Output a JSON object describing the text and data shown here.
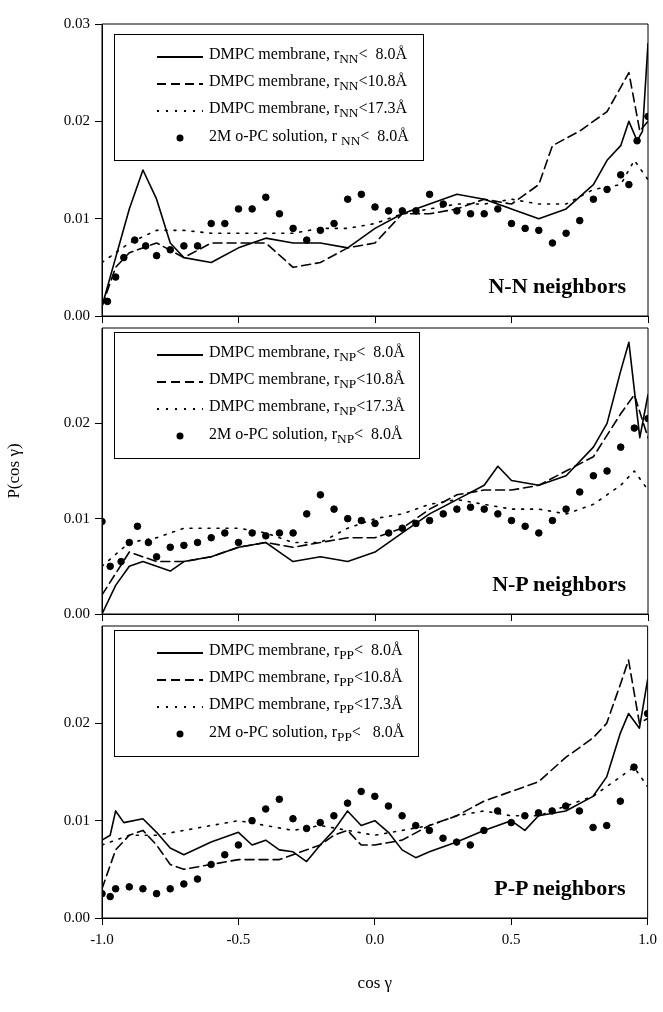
{
  "chart_data": [
    {
      "type": "line",
      "annotations": [
        "N-N neighbors"
      ],
      "legend": "top left",
      "tick_labels": "y",
      "xlim": [
        -1,
        1
      ],
      "ylim": [
        0,
        0.03
      ],
      "xticks": [
        {
          "value": -1,
          "label": null
        },
        {
          "value": -0.5,
          "label": null
        },
        {
          "value": 0,
          "label": null
        },
        {
          "value": 0.5,
          "label": null
        },
        {
          "value": 1,
          "label": null
        }
      ],
      "yticks": [
        {
          "value": 0,
          "label": "0.00"
        },
        {
          "value": 0.01,
          "label": "0.01"
        },
        {
          "value": 0.02,
          "label": "0.02"
        },
        {
          "value": 0.03,
          "label": "0.03"
        }
      ],
      "series": [
        {
          "name": "DMPC membrane, r$_{NN}$<  8.0Å",
          "color": "#000000",
          "type": "line",
          "line_style": "solid",
          "marker": "none",
          "x": [
            -1,
            -0.95,
            -0.9,
            -0.85,
            -0.8,
            -0.75,
            -0.7,
            -0.6,
            -0.5,
            -0.4,
            -0.3,
            -0.2,
            -0.1,
            0,
            0.1,
            0.2,
            0.3,
            0.4,
            0.5,
            0.6,
            0.7,
            0.8,
            0.85,
            0.9,
            0.93,
            0.96,
            0.98,
            1
          ],
          "values": [
            0.001,
            0.006,
            0.011,
            0.015,
            0.012,
            0.0075,
            0.006,
            0.0055,
            0.007,
            0.008,
            0.0075,
            0.0075,
            0.007,
            0.009,
            0.0105,
            0.0115,
            0.0125,
            0.012,
            0.011,
            0.01,
            0.011,
            0.0135,
            0.016,
            0.0175,
            0.02,
            0.018,
            0.019,
            0.028
          ]
        },
        {
          "name": "DMPC membrane, r$_{NN}$<10.8Å",
          "color": "#000000",
          "type": "line",
          "line_style": "dashed",
          "marker": "none",
          "x": [
            -1,
            -0.95,
            -0.9,
            -0.8,
            -0.7,
            -0.6,
            -0.5,
            -0.4,
            -0.3,
            -0.2,
            -0.1,
            0,
            0.1,
            0.2,
            0.3,
            0.4,
            0.5,
            0.6,
            0.65,
            0.75,
            0.85,
            0.9,
            0.93,
            0.97,
            1
          ],
          "values": [
            0.001,
            0.005,
            0.0065,
            0.0075,
            0.006,
            0.0075,
            0.0075,
            0.0075,
            0.005,
            0.0055,
            0.007,
            0.0075,
            0.0105,
            0.0105,
            0.011,
            0.012,
            0.0115,
            0.0135,
            0.0175,
            0.019,
            0.021,
            0.0235,
            0.025,
            0.019,
            0.02
          ]
        },
        {
          "name": "DMPC membrane, r$_{NN}$<17.3Å",
          "color": "#000000",
          "type": "line",
          "line_style": "dotted",
          "marker": "none",
          "x": [
            -1,
            -0.9,
            -0.8,
            -0.7,
            -0.6,
            -0.5,
            -0.4,
            -0.3,
            -0.2,
            -0.1,
            0,
            0.1,
            0.2,
            0.3,
            0.4,
            0.5,
            0.6,
            0.7,
            0.8,
            0.9,
            0.95,
            1
          ],
          "values": [
            0.0055,
            0.0075,
            0.0088,
            0.0088,
            0.0085,
            0.0085,
            0.0085,
            0.0085,
            0.009,
            0.009,
            0.0095,
            0.0105,
            0.011,
            0.0115,
            0.0115,
            0.012,
            0.0115,
            0.0115,
            0.013,
            0.0135,
            0.016,
            0.014
          ]
        },
        {
          "name": "2M o-PC solution, r $_{NN}$<  8.0Å",
          "color": "#000000",
          "type": "scatter",
          "marker": "circle",
          "x": [
            -0.98,
            -0.95,
            -0.92,
            -0.88,
            -0.84,
            -0.8,
            -0.75,
            -0.7,
            -0.65,
            -0.6,
            -0.55,
            -0.5,
            -0.45,
            -0.4,
            -0.35,
            -0.3,
            -0.25,
            -0.2,
            -0.15,
            -0.1,
            -0.05,
            0,
            0.05,
            0.1,
            0.15,
            0.2,
            0.25,
            0.3,
            0.35,
            0.4,
            0.45,
            0.5,
            0.55,
            0.6,
            0.65,
            0.7,
            0.75,
            0.8,
            0.85,
            0.9,
            0.93,
            0.96,
            1
          ],
          "values": [
            0.0015,
            0.004,
            0.006,
            0.0078,
            0.0072,
            0.0062,
            0.0068,
            0.0072,
            0.0072,
            0.0095,
            0.0095,
            0.011,
            0.011,
            0.0122,
            0.0105,
            0.009,
            0.0078,
            0.0088,
            0.0095,
            0.012,
            0.0125,
            0.0112,
            0.0108,
            0.0108,
            0.0108,
            0.0125,
            0.0115,
            0.0108,
            0.0105,
            0.0105,
            0.011,
            0.0095,
            0.009,
            0.0088,
            0.0075,
            0.0085,
            0.0098,
            0.012,
            0.013,
            0.0145,
            0.0135,
            0.018,
            0.0205
          ]
        }
      ]
    },
    {
      "type": "line",
      "annotations": [
        "N-P neighbors"
      ],
      "ylabel": "P(cos γ)",
      "legend": "top left",
      "tick_labels": "y",
      "xlim": [
        -1,
        1
      ],
      "ylim": [
        0,
        0.03
      ],
      "xticks": [
        {
          "value": -1,
          "label": null
        },
        {
          "value": -0.5,
          "label": null
        },
        {
          "value": 0,
          "label": null
        },
        {
          "value": 0.5,
          "label": null
        },
        {
          "value": 1,
          "label": null
        }
      ],
      "yticks": [
        {
          "value": 0,
          "label": "0.00"
        },
        {
          "value": 0.01,
          "label": "0.01"
        },
        {
          "value": 0.02,
          "label": "0.02"
        }
      ],
      "series": [
        {
          "name": "DMPC membrane, r$_{NP}$<  8.0Å",
          "color": "#000000",
          "type": "line",
          "line_style": "solid",
          "marker": "none",
          "x": [
            -1,
            -0.95,
            -0.9,
            -0.85,
            -0.8,
            -0.75,
            -0.7,
            -0.6,
            -0.5,
            -0.4,
            -0.35,
            -0.3,
            -0.2,
            -0.1,
            0,
            0.1,
            0.2,
            0.3,
            0.4,
            0.45,
            0.5,
            0.6,
            0.7,
            0.8,
            0.85,
            0.9,
            0.93,
            0.97,
            1
          ],
          "values": [
            0,
            0.003,
            0.005,
            0.0055,
            0.005,
            0.0045,
            0.0055,
            0.006,
            0.007,
            0.0075,
            0.0065,
            0.0055,
            0.006,
            0.0055,
            0.0065,
            0.0085,
            0.0105,
            0.012,
            0.0135,
            0.0155,
            0.014,
            0.0135,
            0.0145,
            0.0175,
            0.02,
            0.0255,
            0.0285,
            0.0185,
            0.023
          ]
        },
        {
          "name": "DMPC membrane, r$_{NP}$<10.8Å",
          "color": "#000000",
          "type": "line",
          "line_style": "dashed",
          "marker": "none",
          "x": [
            -1,
            -0.9,
            -0.8,
            -0.7,
            -0.6,
            -0.5,
            -0.4,
            -0.3,
            -0.2,
            -0.1,
            0,
            0.1,
            0.2,
            0.3,
            0.4,
            0.5,
            0.6,
            0.7,
            0.8,
            0.9,
            0.95,
            1
          ],
          "values": [
            0.002,
            0.0065,
            0.0055,
            0.0055,
            0.006,
            0.007,
            0.0075,
            0.007,
            0.0075,
            0.008,
            0.008,
            0.009,
            0.011,
            0.0125,
            0.013,
            0.013,
            0.0135,
            0.015,
            0.0165,
            0.021,
            0.023,
            0.0185
          ]
        },
        {
          "name": "DMPC membrane, r$_{NP}$<17.3Å",
          "color": "#000000",
          "type": "line",
          "line_style": "dotted",
          "marker": "none",
          "x": [
            -1,
            -0.9,
            -0.8,
            -0.7,
            -0.6,
            -0.5,
            -0.4,
            -0.3,
            -0.2,
            -0.1,
            0,
            0.1,
            0.2,
            0.3,
            0.4,
            0.5,
            0.6,
            0.7,
            0.8,
            0.9,
            0.95,
            1
          ],
          "values": [
            0.005,
            0.0075,
            0.008,
            0.009,
            0.009,
            0.009,
            0.0085,
            0.0075,
            0.0075,
            0.009,
            0.01,
            0.0105,
            0.0115,
            0.012,
            0.0115,
            0.011,
            0.011,
            0.0105,
            0.0115,
            0.0135,
            0.015,
            0.013
          ]
        },
        {
          "name": "2M o-PC solution, r$_{NP}$<  8.0Å",
          "color": "#000000",
          "type": "scatter",
          "marker": "circle",
          "x": [
            -1,
            -0.97,
            -0.93,
            -0.9,
            -0.87,
            -0.83,
            -0.8,
            -0.75,
            -0.7,
            -0.65,
            -0.6,
            -0.55,
            -0.5,
            -0.45,
            -0.4,
            -0.35,
            -0.3,
            -0.25,
            -0.2,
            -0.15,
            -0.1,
            -0.05,
            0,
            0.05,
            0.1,
            0.15,
            0.2,
            0.25,
            0.3,
            0.35,
            0.4,
            0.45,
            0.5,
            0.55,
            0.6,
            0.65,
            0.7,
            0.75,
            0.8,
            0.85,
            0.9,
            0.95,
            1
          ],
          "values": [
            0.0097,
            0.005,
            0.0055,
            0.0075,
            0.0092,
            0.0075,
            0.006,
            0.007,
            0.0072,
            0.0075,
            0.008,
            0.0085,
            0.0075,
            0.0085,
            0.0082,
            0.0085,
            0.0085,
            0.0105,
            0.0125,
            0.011,
            0.01,
            0.0098,
            0.0095,
            0.0085,
            0.009,
            0.0095,
            0.0098,
            0.0105,
            0.011,
            0.0112,
            0.011,
            0.0105,
            0.0098,
            0.0092,
            0.0085,
            0.0098,
            0.011,
            0.0128,
            0.0145,
            0.015,
            0.0175,
            0.0195,
            0.0205
          ]
        }
      ]
    },
    {
      "type": "line",
      "annotations": [
        "P-P neighbors"
      ],
      "xlabel": "cos γ",
      "legend": "top left",
      "xlim": [
        -1,
        1
      ],
      "ylim": [
        0,
        0.03
      ],
      "xticks": [
        {
          "value": -1,
          "label": "-1.0"
        },
        {
          "value": -0.5,
          "label": "-0.5"
        },
        {
          "value": 0,
          "label": "0.0"
        },
        {
          "value": 0.5,
          "label": "0.5"
        },
        {
          "value": 1,
          "label": "1.0"
        }
      ],
      "yticks": [
        {
          "value": 0,
          "label": "0.00"
        },
        {
          "value": 0.01,
          "label": "0.01"
        },
        {
          "value": 0.02,
          "label": "0.02"
        }
      ],
      "series": [
        {
          "name": "DMPC membrane, r$_{PP}$<  8.0Å",
          "color": "#000000",
          "type": "line",
          "line_style": "solid",
          "marker": "none",
          "x": [
            -1,
            -0.97,
            -0.95,
            -0.92,
            -0.85,
            -0.8,
            -0.75,
            -0.7,
            -0.6,
            -0.5,
            -0.45,
            -0.4,
            -0.35,
            -0.3,
            -0.25,
            -0.2,
            -0.15,
            -0.1,
            -0.05,
            0,
            0.05,
            0.1,
            0.15,
            0.2,
            0.3,
            0.4,
            0.5,
            0.55,
            0.6,
            0.7,
            0.8,
            0.85,
            0.9,
            0.93,
            0.97,
            1
          ],
          "values": [
            0.008,
            0.0085,
            0.011,
            0.0098,
            0.0102,
            0.0088,
            0.0072,
            0.0065,
            0.0078,
            0.0088,
            0.0075,
            0.008,
            0.007,
            0.0068,
            0.0058,
            0.0075,
            0.009,
            0.011,
            0.0095,
            0.01,
            0.0088,
            0.007,
            0.0062,
            0.0068,
            0.0078,
            0.009,
            0.01,
            0.009,
            0.0105,
            0.011,
            0.0125,
            0.0145,
            0.019,
            0.021,
            0.0195,
            0.0245
          ]
        },
        {
          "name": "DMPC membrane, r$_{PP}$<10.8Å",
          "color": "#000000",
          "type": "line",
          "line_style": "dashed",
          "marker": "none",
          "x": [
            -1,
            -0.95,
            -0.9,
            -0.85,
            -0.8,
            -0.75,
            -0.7,
            -0.6,
            -0.5,
            -0.4,
            -0.35,
            -0.3,
            -0.2,
            -0.15,
            -0.1,
            -0.05,
            0,
            0.1,
            0.2,
            0.3,
            0.4,
            0.5,
            0.6,
            0.7,
            0.8,
            0.85,
            0.9,
            0.93,
            0.97,
            1
          ],
          "values": [
            0.003,
            0.007,
            0.0085,
            0.009,
            0.0075,
            0.0055,
            0.005,
            0.0055,
            0.006,
            0.006,
            0.006,
            0.0065,
            0.0075,
            0.0085,
            0.009,
            0.0075,
            0.0075,
            0.008,
            0.0095,
            0.0105,
            0.012,
            0.013,
            0.014,
            0.0165,
            0.0185,
            0.02,
            0.024,
            0.0265,
            0.02,
            0.0205
          ]
        },
        {
          "name": "DMPC membrane, r$_{PP}$<17.3Å",
          "color": "#000000",
          "type": "line",
          "line_style": "dotted",
          "marker": "none",
          "x": [
            -1,
            -0.9,
            -0.8,
            -0.7,
            -0.6,
            -0.5,
            -0.4,
            -0.3,
            -0.2,
            -0.1,
            0,
            0.1,
            0.2,
            0.3,
            0.4,
            0.5,
            0.6,
            0.7,
            0.8,
            0.9,
            0.95,
            1
          ],
          "values": [
            0.0075,
            0.0085,
            0.0085,
            0.009,
            0.0095,
            0.01,
            0.0095,
            0.009,
            0.0095,
            0.009,
            0.0085,
            0.009,
            0.0095,
            0.0105,
            0.011,
            0.0105,
            0.0105,
            0.0115,
            0.0125,
            0.0145,
            0.0155,
            0.0135
          ]
        },
        {
          "name": "2M o-PC solution, r$_{PP}$<   8.0Å",
          "color": "#000000",
          "type": "scatter",
          "marker": "circle",
          "x": [
            -1,
            -0.97,
            -0.95,
            -0.9,
            -0.85,
            -0.8,
            -0.75,
            -0.7,
            -0.65,
            -0.6,
            -0.55,
            -0.5,
            -0.45,
            -0.4,
            -0.35,
            -0.3,
            -0.25,
            -0.2,
            -0.15,
            -0.1,
            -0.05,
            0,
            0.05,
            0.1,
            0.15,
            0.2,
            0.25,
            0.3,
            0.35,
            0.4,
            0.45,
            0.5,
            0.55,
            0.6,
            0.65,
            0.7,
            0.75,
            0.8,
            0.85,
            0.9,
            0.95,
            1
          ],
          "values": [
            0.0025,
            0.0022,
            0.003,
            0.0032,
            0.003,
            0.0025,
            0.003,
            0.0035,
            0.004,
            0.0055,
            0.0065,
            0.0075,
            0.01,
            0.0112,
            0.0122,
            0.0102,
            0.0092,
            0.0098,
            0.0105,
            0.0118,
            0.013,
            0.0125,
            0.0115,
            0.0105,
            0.0095,
            0.009,
            0.0082,
            0.0078,
            0.0075,
            0.009,
            0.011,
            0.0098,
            0.0105,
            0.0108,
            0.011,
            0.0115,
            0.011,
            0.0093,
            0.0095,
            0.012,
            0.0155,
            0.021
          ]
        }
      ]
    }
  ]
}
